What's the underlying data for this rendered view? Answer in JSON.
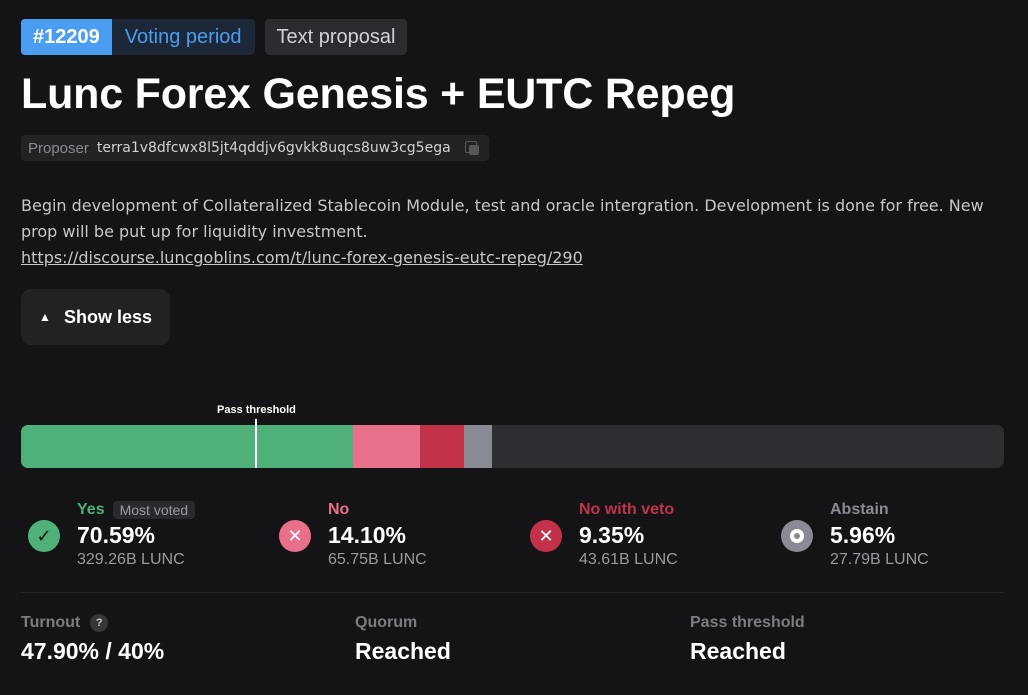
{
  "proposal": {
    "id": "#12209",
    "status": "Voting period",
    "type": "Text proposal",
    "title": "Lunc Forex Genesis + EUTC Repeg",
    "proposer_label": "Proposer",
    "proposer_address": "terra1v8dfcwx8l5jt4qddjv6gvkk8uqcs8uw3cg5ega",
    "description": "Begin development of Collateralized Stablecoin Module, test and oracle intergration. Development is done for free. New prop will be put up for liquidity investment.",
    "link": "https://discourse.luncgoblins.com/t/lunc-forex-genesis-eutc-repeg/290",
    "show_less_label": "Show less"
  },
  "tally": {
    "threshold_label": "Pass threshold",
    "threshold_fraction": 0.5,
    "options": [
      {
        "key": "yes",
        "name": "Yes",
        "badge": "Most voted",
        "percent": "70.59%",
        "fraction": 0.7059,
        "amount": "329.26B LUNC",
        "color": "#4fb07a",
        "icon": "check-icon"
      },
      {
        "key": "no",
        "name": "No",
        "percent": "14.10%",
        "fraction": 0.141,
        "amount": "65.75B LUNC",
        "color": "#e8708a",
        "icon": "x-icon"
      },
      {
        "key": "veto",
        "name": "No with veto",
        "percent": "9.35%",
        "fraction": 0.0935,
        "amount": "43.61B LUNC",
        "color": "#c2334a",
        "icon": "x-icon"
      },
      {
        "key": "abstain",
        "name": "Abstain",
        "percent": "5.96%",
        "fraction": 0.0596,
        "amount": "27.79B LUNC",
        "color": "#8a8a94",
        "icon": "circle-icon"
      }
    ]
  },
  "stats": {
    "turnout_label": "Turnout",
    "turnout_help": "?",
    "turnout_value": "47.90% / 40%",
    "turnout_fraction": 0.479,
    "quorum_label": "Quorum",
    "quorum_value": "Reached",
    "pass_label": "Pass threshold",
    "pass_value": "Reached"
  }
}
